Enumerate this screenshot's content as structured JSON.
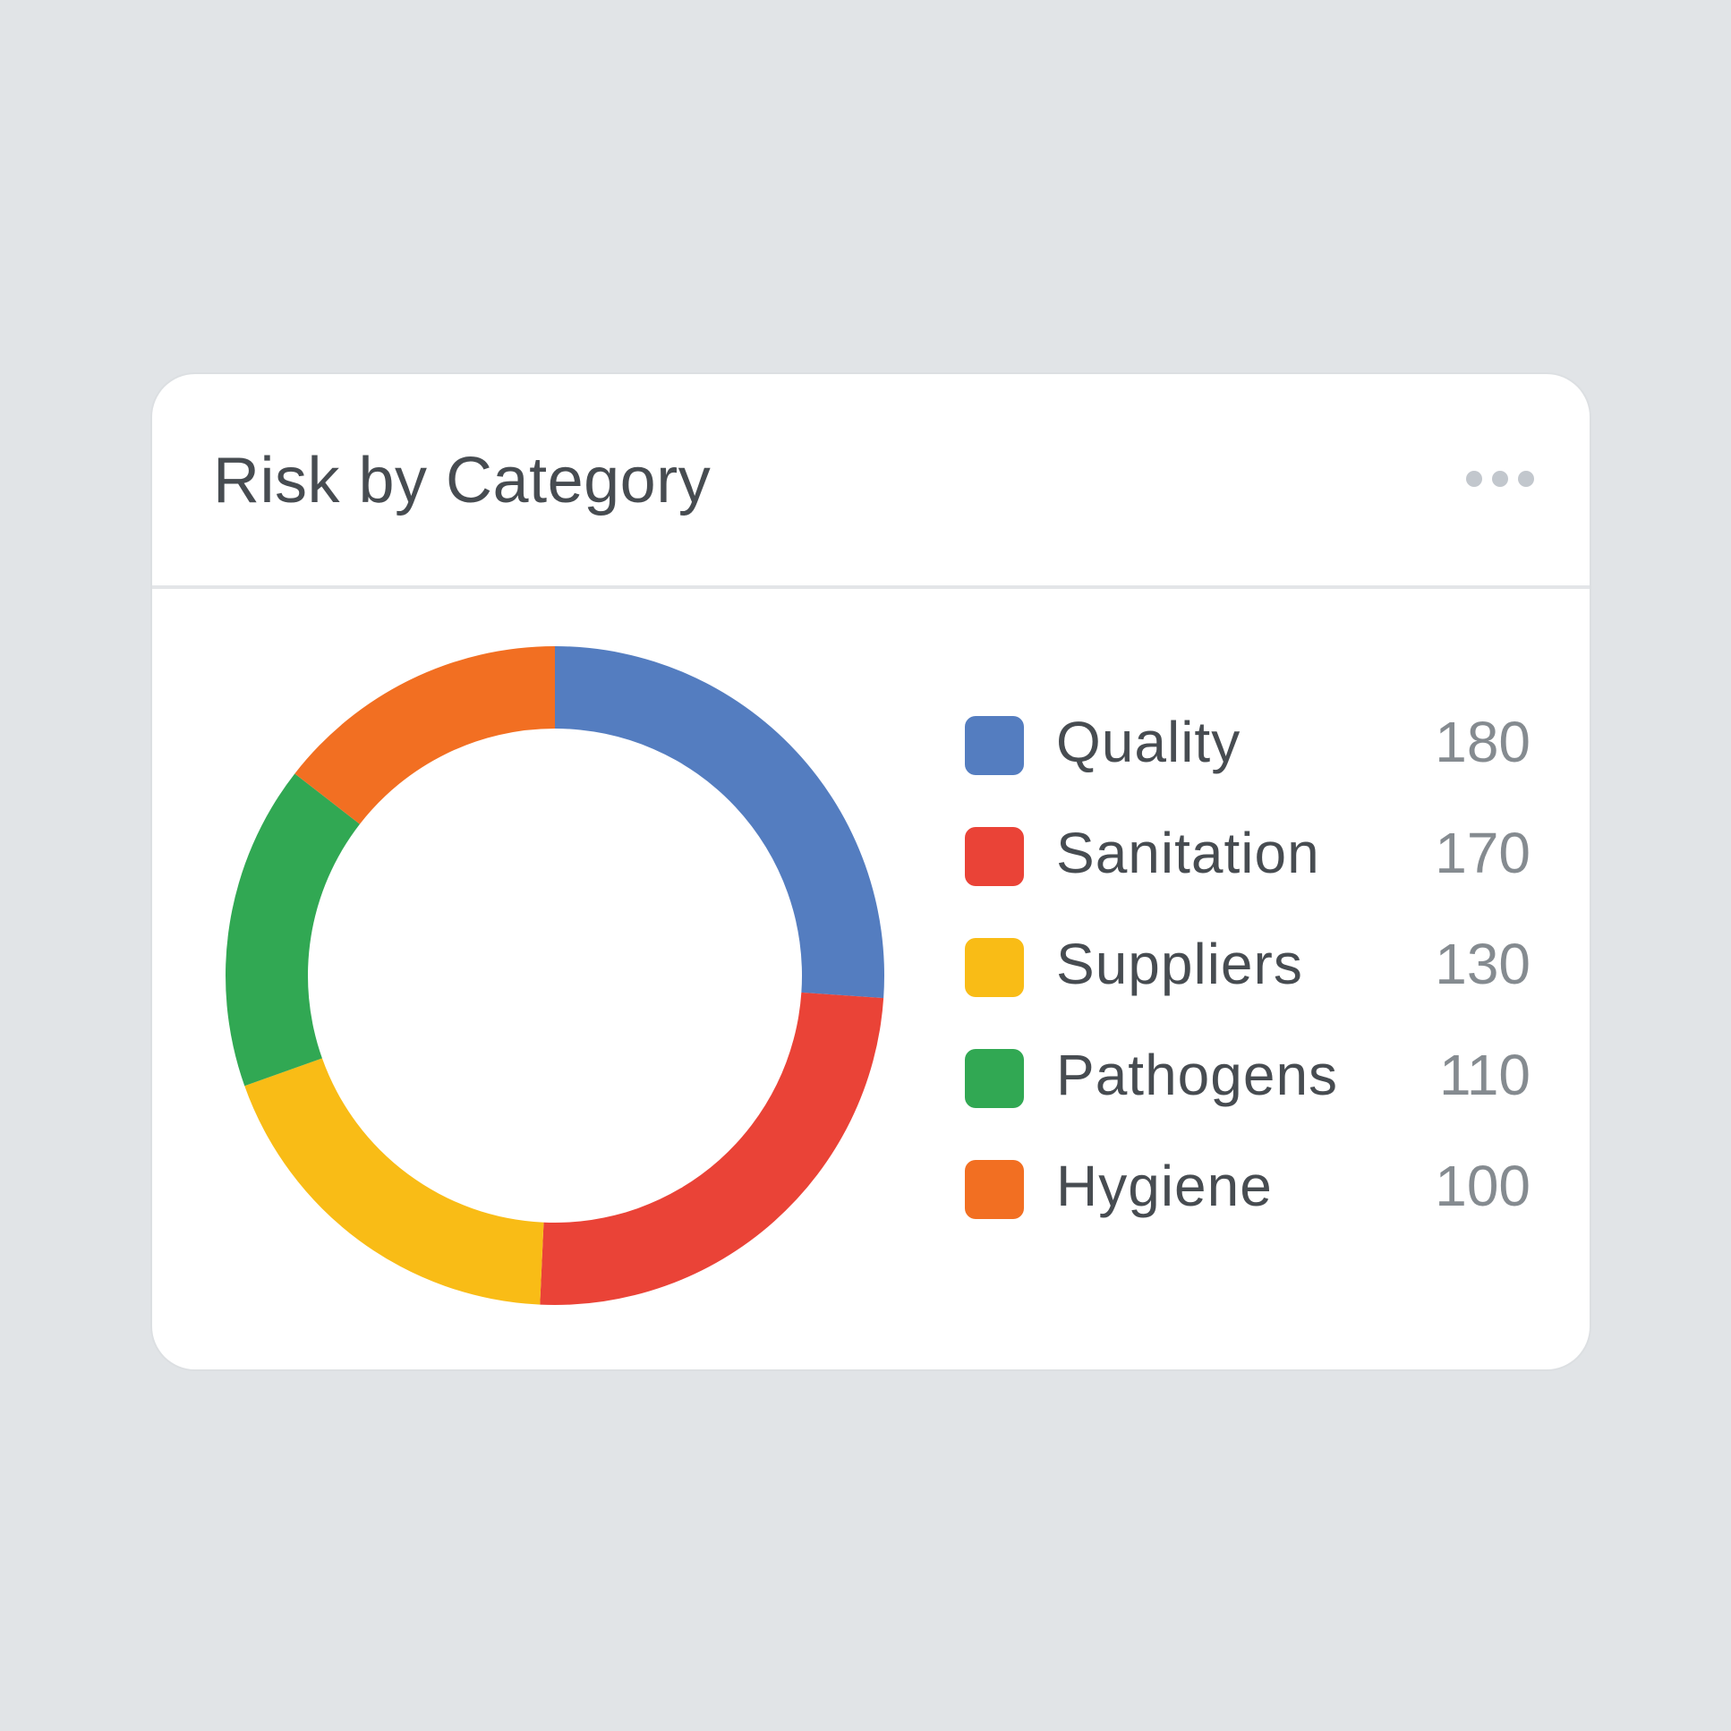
{
  "card": {
    "title": "Risk by Category",
    "menu_icon": "more-horizontal-icon"
  },
  "legend": [
    {
      "label": "Quality",
      "value": "180",
      "color": "#547dc0"
    },
    {
      "label": "Sanitation",
      "value": "170",
      "color": "#ea4337"
    },
    {
      "label": "Suppliers",
      "value": "130",
      "color": "#f9bc16"
    },
    {
      "label": "Pathogens",
      "value": "110",
      "color": "#31a853"
    },
    {
      "label": "Hygiene",
      "value": "100",
      "color": "#f26f22"
    }
  ],
  "chart_data": {
    "type": "pie",
    "variant": "donut",
    "title": "Risk by Category",
    "categories": [
      "Quality",
      "Sanitation",
      "Suppliers",
      "Pathogens",
      "Hygiene"
    ],
    "values": [
      180,
      170,
      130,
      110,
      100
    ],
    "colors": [
      "#547dc0",
      "#ea4337",
      "#f9bc16",
      "#31a853",
      "#f26f22"
    ],
    "start_angle": "top (12 o'clock), clockwise",
    "legend_position": "right"
  }
}
